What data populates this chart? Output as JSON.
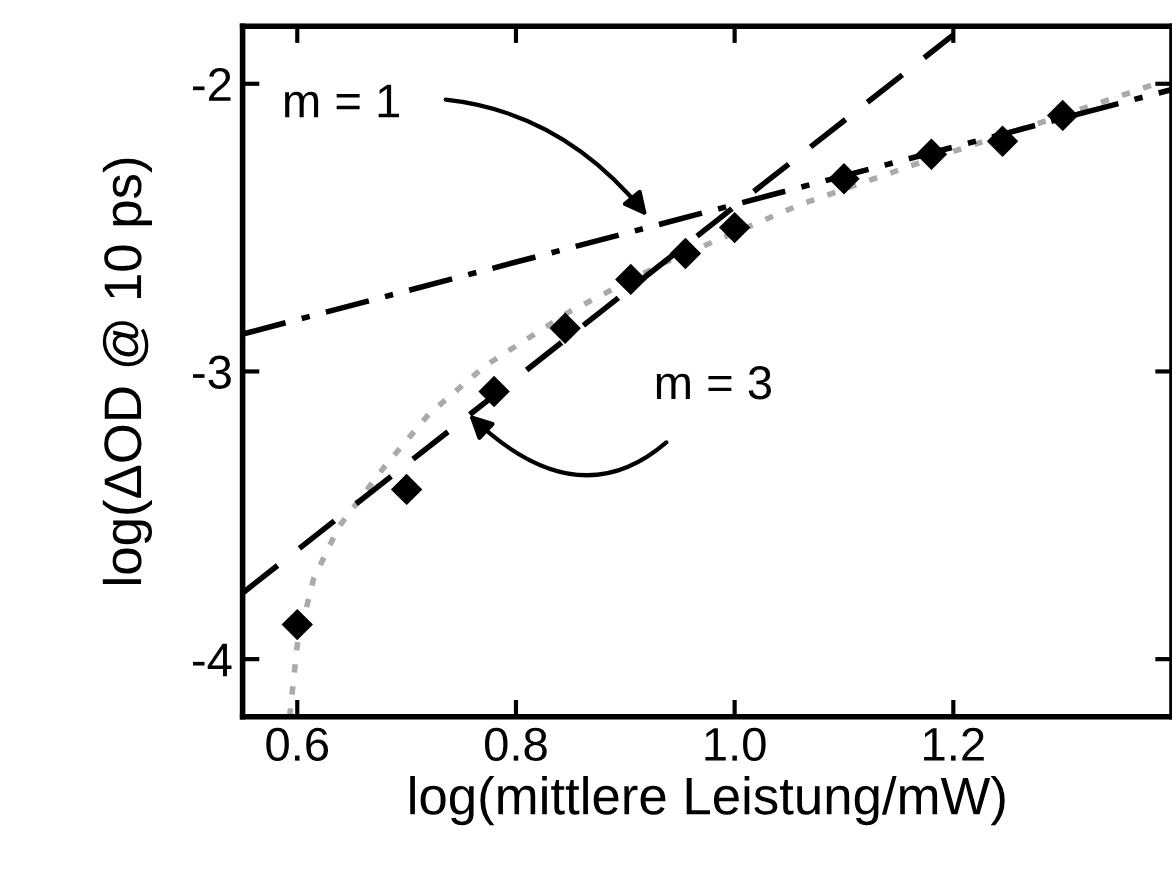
{
  "chart_data": {
    "type": "scatter",
    "xlabel": "log(mittlere Leistung/mW)",
    "ylabel": "log(ΔOD @ 10 ps)",
    "xlim": [
      0.55,
      1.4
    ],
    "xticks": [
      0.6,
      0.8,
      {
        "value": 1.0,
        "label": "1.0"
      },
      1.2
    ],
    "ylim": [
      -4.2,
      -1.8
    ],
    "yticks": [
      -4,
      -3,
      -2
    ],
    "grid": false,
    "legend": false,
    "series": [
      {
        "type": "line",
        "color": "#aaaaaa",
        "line_style": "dotted",
        "marker": "none",
        "x": [
          0.593,
          0.6,
          0.615,
          0.638,
          0.68,
          0.72,
          0.772,
          0.85,
          0.937,
          1.06,
          1.18,
          1.3,
          1.393
        ],
        "values": [
          -4.2,
          -3.95,
          -3.72,
          -3.54,
          -3.33,
          -3.15,
          -2.98,
          -2.79,
          -2.62,
          -2.42,
          -2.26,
          -2.11,
          -1.99
        ]
      },
      {
        "type": "line",
        "color": "#000000",
        "line_style": "dashdot",
        "marker": "none",
        "x": [
          0.55,
          1.4
        ],
        "values": [
          -2.87,
          -2.02
        ]
      },
      {
        "type": "line",
        "color": "#000000",
        "line_style": "dashed",
        "marker": "none",
        "x": [
          0.55,
          1.2
        ],
        "values": [
          -3.77,
          -1.83
        ]
      },
      {
        "color": "#000000",
        "marker": "diamond",
        "x": [
          0.6,
          0.7,
          0.78,
          0.845,
          0.905,
          0.955,
          1.0,
          1.1,
          1.18,
          1.245,
          1.3
        ],
        "values": [
          -3.88,
          -3.41,
          -3.07,
          -2.85,
          -2.68,
          -2.59,
          -2.5,
          -2.33,
          -2.245,
          -2.2,
          -2.11
        ]
      }
    ],
    "annotations": [
      {
        "text": "m = 1",
        "x": 0.92,
        "y": -2.46
      },
      {
        "text": "m = 3",
        "x": 0.757,
        "y": -3.15
      }
    ]
  }
}
